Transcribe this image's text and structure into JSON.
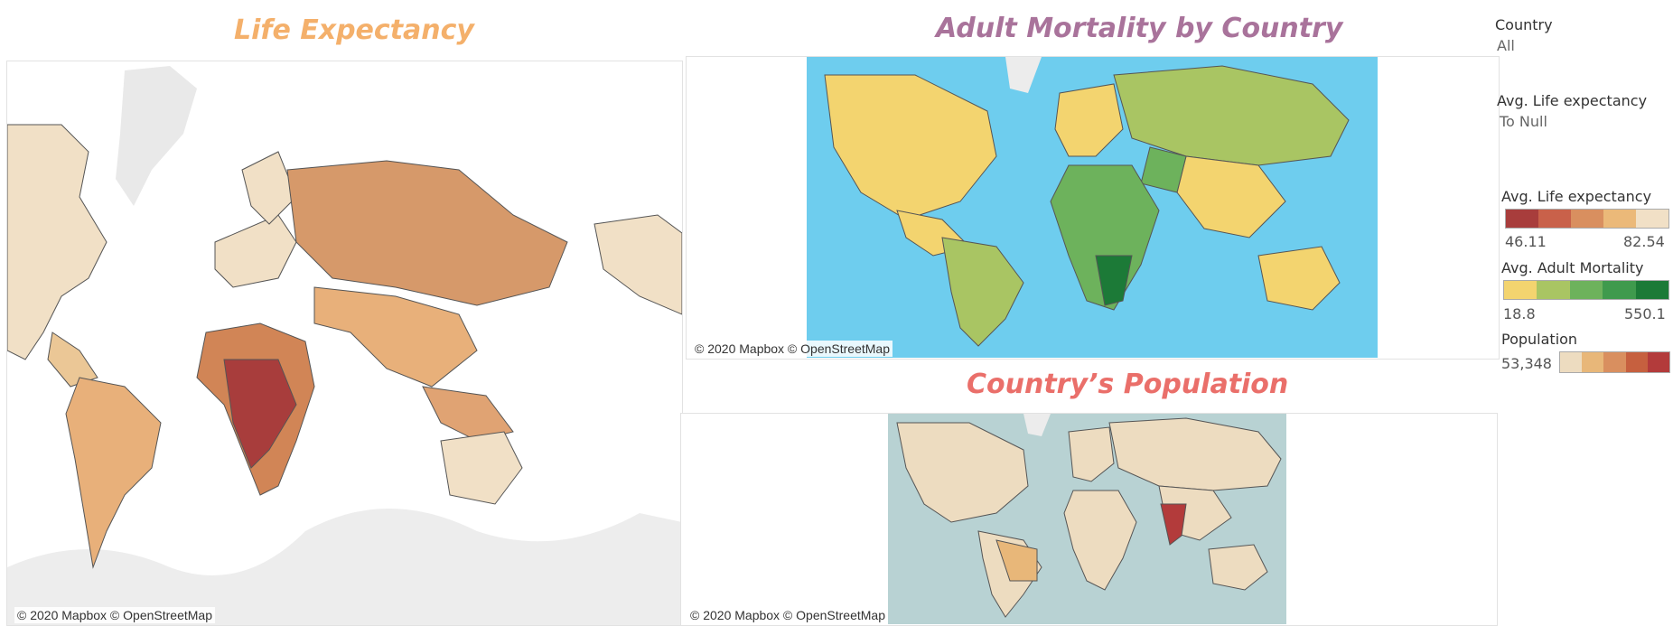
{
  "titles": {
    "life": "Life Expectancy",
    "mortality": "Adult Mortality by Country",
    "population": "Country’s Population"
  },
  "attribution": "© 2020 Mapbox © OpenStreetMap",
  "filters": {
    "country": {
      "label": "Country",
      "value": "All"
    },
    "life_expectancy": {
      "label": "Avg. Life expectancy",
      "value": "To Null"
    }
  },
  "legends": {
    "life": {
      "label": "Avg. Life expectancy",
      "min": "46.11",
      "max": "82.54",
      "colors": [
        "#a83d3c",
        "#c9614a",
        "#d98f5f",
        "#ebb979",
        "#f1e0c6"
      ]
    },
    "mortality": {
      "label": "Avg. Adult Mortality",
      "min": "18.8",
      "max": "550.1",
      "colors": [
        "#f3d46f",
        "#a9c563",
        "#6db25c",
        "#3f9a4d",
        "#1c7a37"
      ]
    },
    "population": {
      "label": "Population",
      "min": "53,348",
      "colors": [
        "#eddcc0",
        "#e8b779",
        "#d98f5f",
        "#c6603f",
        "#b33b3b"
      ]
    }
  },
  "map_colors": {
    "ocean_mortality": "#6ecdee",
    "ocean_population": "#b8d2d3",
    "land_grey": "#e6e6e6"
  },
  "icons": [
    "world-map"
  ]
}
